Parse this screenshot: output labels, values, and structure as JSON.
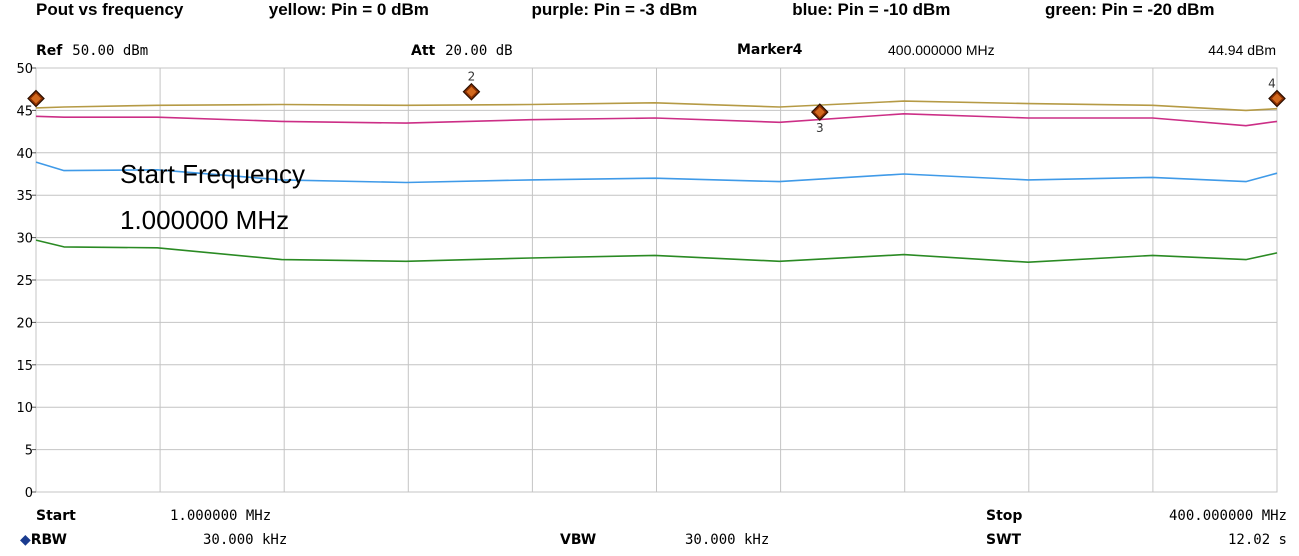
{
  "title": {
    "main": "Pout vs frequency",
    "legend_yellow": "yellow: Pin = 0 dBm",
    "legend_purple": "purple: Pin = -3 dBm",
    "legend_blue": "blue: Pin = -10 dBm",
    "legend_green": "green: Pin = -20 dBm"
  },
  "header": {
    "ref_label": "Ref",
    "ref_value": "50.00 dBm",
    "att_label": "Att",
    "att_value": "20.00 dB",
    "marker_label": "Marker4",
    "marker_freq": "400.000000 MHz",
    "marker_level": "44.94 dBm"
  },
  "footer": {
    "start_label": "Start",
    "start_value": "1.000000 MHz",
    "stop_label": "Stop",
    "stop_value": "400.000000 MHz",
    "rbw_label": "RBW",
    "rbw_value": "30.000 kHz",
    "vbw_label": "VBW",
    "vbw_value": "30.000 kHz",
    "swt_label": "SWT",
    "swt_value": "12.02 s"
  },
  "annotation": {
    "line1": "Start Frequency",
    "line2": "1.000000 MHz"
  },
  "colors": {
    "yellow": "#b59a45",
    "purple": "#cc2e86",
    "blue": "#3f9ae8",
    "green": "#2a8a23",
    "grid": "#c4c4c4",
    "marker_fill": "#8b2f00"
  },
  "chart_data": {
    "type": "line",
    "xlim": [
      1,
      400
    ],
    "ylim": [
      0,
      50
    ],
    "yticks": [
      0,
      5,
      10,
      15,
      20,
      25,
      30,
      35,
      40,
      45,
      50
    ],
    "grid": true,
    "series": [
      {
        "name": "yellow: Pin = 0 dBm",
        "color": "yellow",
        "x": [
          1,
          10,
          40,
          80,
          120,
          160,
          200,
          240,
          280,
          320,
          360,
          390,
          400
        ],
        "y": [
          45.3,
          45.4,
          45.6,
          45.7,
          45.6,
          45.7,
          45.9,
          45.4,
          46.1,
          45.8,
          45.6,
          45.0,
          45.2
        ]
      },
      {
        "name": "purple: Pin = -3 dBm",
        "color": "purple",
        "x": [
          1,
          10,
          40,
          80,
          120,
          160,
          200,
          240,
          280,
          320,
          360,
          390,
          400
        ],
        "y": [
          44.3,
          44.2,
          44.2,
          43.7,
          43.5,
          43.9,
          44.1,
          43.6,
          44.6,
          44.1,
          44.1,
          43.2,
          43.7
        ]
      },
      {
        "name": "blue: Pin = -10 dBm",
        "color": "blue",
        "x": [
          1,
          10,
          40,
          80,
          120,
          160,
          200,
          240,
          280,
          320,
          360,
          390,
          400
        ],
        "y": [
          38.9,
          37.9,
          38.0,
          36.8,
          36.5,
          36.8,
          37.0,
          36.6,
          37.5,
          36.8,
          37.1,
          36.6,
          37.6
        ]
      },
      {
        "name": "green: Pin = -20 dBm",
        "color": "green",
        "x": [
          1,
          10,
          40,
          80,
          120,
          160,
          200,
          240,
          280,
          320,
          360,
          390,
          400
        ],
        "y": [
          29.7,
          28.9,
          28.8,
          27.4,
          27.2,
          27.6,
          27.9,
          27.2,
          28.0,
          27.1,
          27.9,
          27.4,
          28.2
        ]
      }
    ],
    "markers": [
      {
        "id": "2",
        "x": 141,
        "y": 47.2
      },
      {
        "id": "3",
        "x": 253,
        "y": 44.8
      },
      {
        "id": "1",
        "x": 1,
        "y": 46.4
      },
      {
        "id": "4",
        "x": 400,
        "y": 46.4
      }
    ]
  }
}
